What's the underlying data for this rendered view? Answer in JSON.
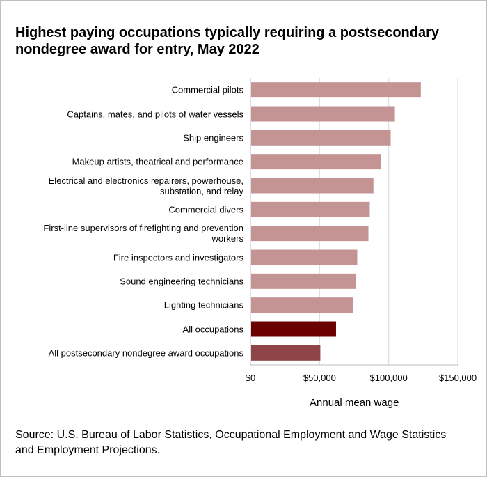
{
  "title": "Highest paying occupations typically requiring a postsecondary nondegree award for entry, May 2022",
  "source": "Source: U.S. Bureau of Labor Statistics, Occupational Employment and Wage Statistics and Employment Projections.",
  "colors": {
    "occupation_bar": "#c49393",
    "all_occupations_bar": "#6b0000",
    "all_postsecondary_bar": "#8f4545",
    "gridline": "#d9d9d9",
    "frame": "#bfbfbf"
  },
  "chart_data": {
    "type": "bar",
    "orientation": "horizontal",
    "title": "Highest paying occupations typically requiring a postsecondary nondegree award for entry, May 2022",
    "xlabel": "Annual mean wage",
    "ylabel": "",
    "xlim": [
      0,
      150000
    ],
    "x_ticks": [
      0,
      50000,
      100000,
      150000
    ],
    "x_tick_labels": [
      "$0",
      "$50,000",
      "$100,000",
      "$150,000"
    ],
    "grid": true,
    "legend": "none",
    "categories": [
      "Commercial pilots",
      "Captains, mates, and pilots of water vessels",
      "Ship engineers",
      "Makeup artists, theatrical and performance",
      "Electrical and electronics repairers, powerhouse, substation, and relay",
      "Commercial divers",
      "First-line supervisors of firefighting and prevention workers",
      "Fire inspectors and investigators",
      "Sound engineering technicians",
      "Lighting technicians",
      "All occupations",
      "All postsecondary nondegree award occupations"
    ],
    "values": [
      123240,
      104480,
      101440,
      94460,
      88960,
      86300,
      85330,
      77250,
      76100,
      74300,
      61900,
      50540
    ]
  }
}
